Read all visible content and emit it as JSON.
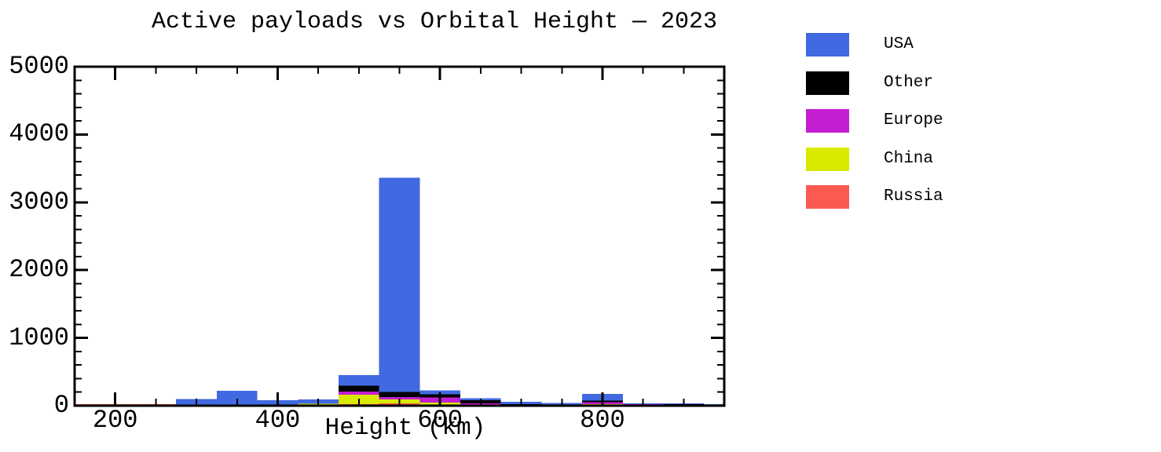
{
  "chart_data": {
    "type": "bar",
    "subtype": "stacked-histogram",
    "title": "Active payloads vs Orbital Height — 2023",
    "xlabel": "Height (km)",
    "ylabel": "",
    "xlim": [
      150,
      950
    ],
    "ylim": [
      0,
      5000
    ],
    "x_major_ticks": [
      200,
      400,
      600,
      800
    ],
    "x_minor_step": 50,
    "y_major_ticks": [
      0,
      1000,
      2000,
      3000,
      4000,
      5000
    ],
    "y_minor_step": 200,
    "grid": false,
    "legend_position": "outside-right",
    "bin_edges": [
      275,
      325,
      375,
      425,
      475,
      525,
      575,
      625,
      675,
      725,
      775,
      825,
      875,
      925,
      950
    ],
    "stack_order_bottom_to_top": [
      "Russia",
      "China",
      "Europe",
      "Other",
      "USA"
    ],
    "series": [
      {
        "name": "USA",
        "color": "#4169E1",
        "values": [
          100,
          220,
          75,
          65,
          155,
          3160,
          60,
          30,
          35,
          20,
          100,
          12,
          10,
          8
        ]
      },
      {
        "name": "Other",
        "color": "#000000",
        "values": [
          0,
          0,
          0,
          0,
          85,
          75,
          45,
          45,
          5,
          2,
          25,
          2,
          2,
          2
        ]
      },
      {
        "name": "Europe",
        "color": "#C41ED2",
        "values": [
          0,
          0,
          0,
          0,
          50,
          30,
          75,
          20,
          5,
          3,
          25,
          3,
          2,
          2
        ]
      },
      {
        "name": "China",
        "color": "#D9EA00",
        "values": [
          0,
          0,
          5,
          25,
          135,
          60,
          30,
          10,
          10,
          8,
          15,
          10,
          10,
          5
        ]
      },
      {
        "name": "Russia",
        "color": "#FB5A52",
        "values": [
          0,
          0,
          0,
          5,
          25,
          35,
          15,
          5,
          5,
          5,
          10,
          8,
          8,
          5
        ]
      }
    ]
  }
}
